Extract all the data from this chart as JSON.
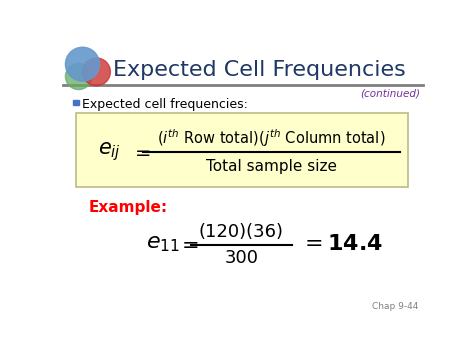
{
  "title": "Expected Cell Frequencies",
  "title_color": "#1F3864",
  "title_fontsize": 16,
  "continued_text": "(continued)",
  "continued_color": "#7030A0",
  "bullet_text": "Expected cell frequencies:",
  "bullet_color": "#000000",
  "bullet_marker_color": "#4472C4",
  "box_facecolor": "#FFFFCC",
  "box_edgecolor": "#BBBB88",
  "formula_denominator": "Total sample size",
  "example_label": "Example:",
  "example_color": "#FF0000",
  "example_numerator": "(120)(36)",
  "example_denominator": "300",
  "bg_color": "#FFFFFF",
  "line_color": "#808080",
  "chap_text": "Chap 9-44",
  "chap_color": "#808080"
}
